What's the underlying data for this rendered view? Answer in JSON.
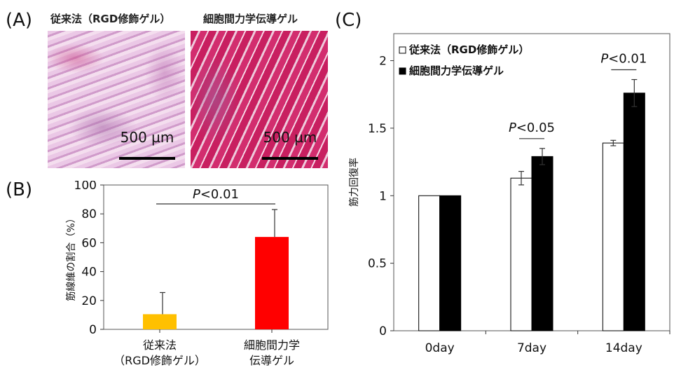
{
  "panelA": {
    "label": "(A)",
    "left_caption": "従来法（RGD修飾ゲル）",
    "right_caption": "細胞間力学伝導ゲル",
    "scale_label": "500 µm"
  },
  "panelB": {
    "label": "(B)",
    "chart_data": {
      "type": "bar",
      "categories": [
        "従来法\n（RGD修飾ゲル）",
        "細胞間力学\n伝導ゲル"
      ],
      "values": [
        10.5,
        64
      ],
      "errors": [
        15,
        19
      ],
      "colors": [
        "#FFC000",
        "#FF0000"
      ],
      "ylabel": "筋線維の割合（%）",
      "ylim": [
        0,
        100
      ],
      "yticks": [
        0,
        20,
        40,
        60,
        80,
        100
      ],
      "annotation": "P<0.01"
    }
  },
  "panelC": {
    "label": "(C)",
    "chart_data": {
      "type": "bar",
      "categories": [
        "0day",
        "7day",
        "14day"
      ],
      "series": [
        {
          "name": "従来法（RGD修飾ゲル）",
          "values": [
            1.0,
            1.13,
            1.39
          ],
          "errors": [
            0,
            0.05,
            0.02
          ],
          "color": "#FFFFFF"
        },
        {
          "name": "細胞間力学伝導ゲル",
          "values": [
            1.0,
            1.29,
            1.76
          ],
          "errors": [
            0,
            0.06,
            0.1
          ],
          "color": "#000000"
        }
      ],
      "ylabel": "筋力回復率",
      "ylim": [
        0,
        2.2
      ],
      "yticks": [
        0,
        0.5,
        1,
        1.5,
        2
      ],
      "ytick_labels": [
        "0",
        "0.5",
        "1",
        "1.5",
        "2"
      ],
      "legend_position": "top-left",
      "annotations": [
        {
          "category": "7day",
          "text": "P<0.05"
        },
        {
          "category": "14day",
          "text": "P<0.01"
        }
      ]
    }
  }
}
